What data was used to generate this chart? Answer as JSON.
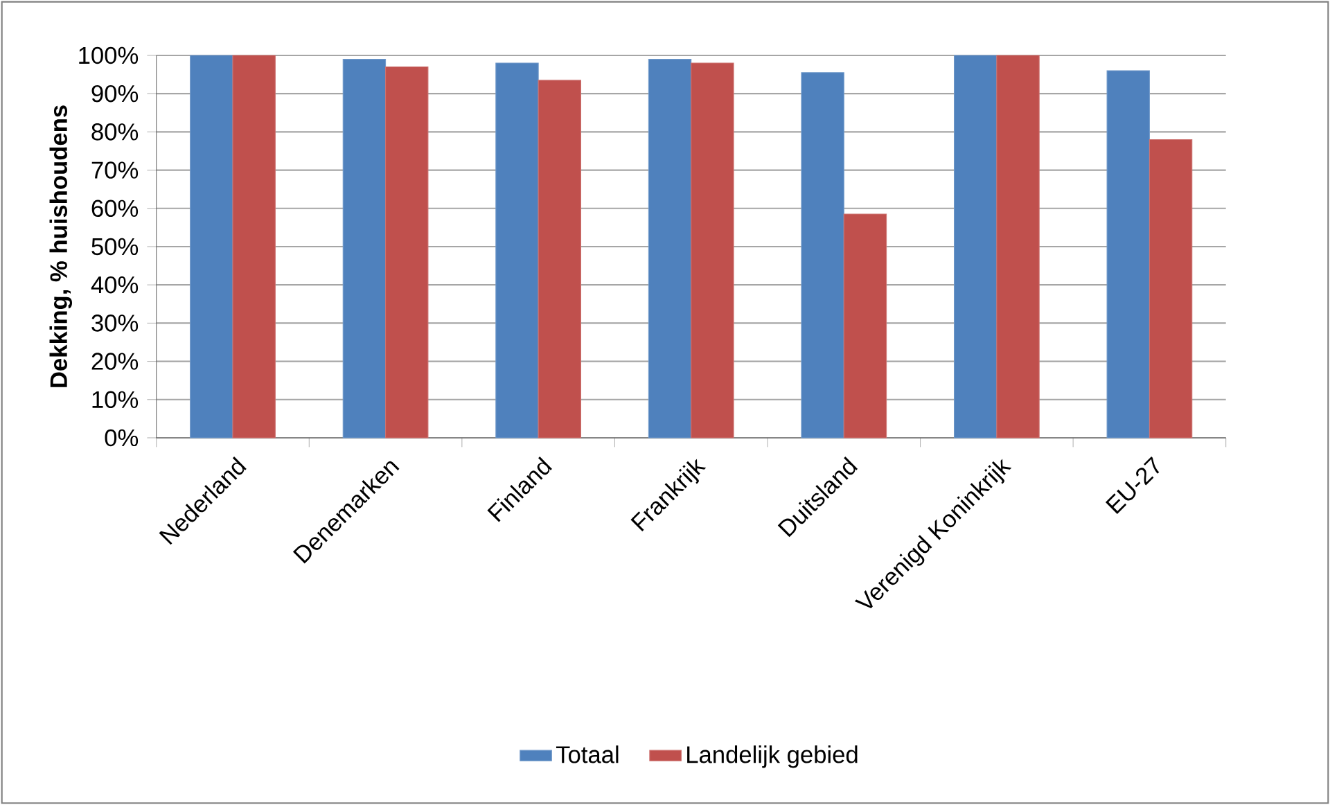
{
  "chart_data": {
    "type": "bar",
    "ylabel": "Dekking, % huishoudens",
    "categories": [
      "Nederland",
      "Denemarken",
      "Finland",
      "Frankrijk",
      "Duitsland",
      "Verenigd Koninkrijk",
      "EU-27"
    ],
    "series": [
      {
        "name": "Totaal",
        "color": "#4f81bd",
        "values": [
          100,
          99,
          98,
          99,
          95.5,
          100,
          96
        ]
      },
      {
        "name": "Landelijk gebied",
        "color": "#c0504d",
        "values": [
          100,
          97,
          93.5,
          98,
          58.5,
          100,
          78
        ]
      }
    ],
    "ylim": [
      0,
      100
    ],
    "yticks": [
      {
        "value": 0,
        "label": "0%"
      },
      {
        "value": 10,
        "label": "10%"
      },
      {
        "value": 20,
        "label": "20%"
      },
      {
        "value": 30,
        "label": "30%"
      },
      {
        "value": 40,
        "label": "40%"
      },
      {
        "value": 50,
        "label": "50%"
      },
      {
        "value": 60,
        "label": "60%"
      },
      {
        "value": 70,
        "label": "70%"
      },
      {
        "value": 80,
        "label": "80%"
      },
      {
        "value": 90,
        "label": "90%"
      },
      {
        "value": 100,
        "label": "100%"
      }
    ],
    "grid": "y",
    "legend": "bottom"
  }
}
